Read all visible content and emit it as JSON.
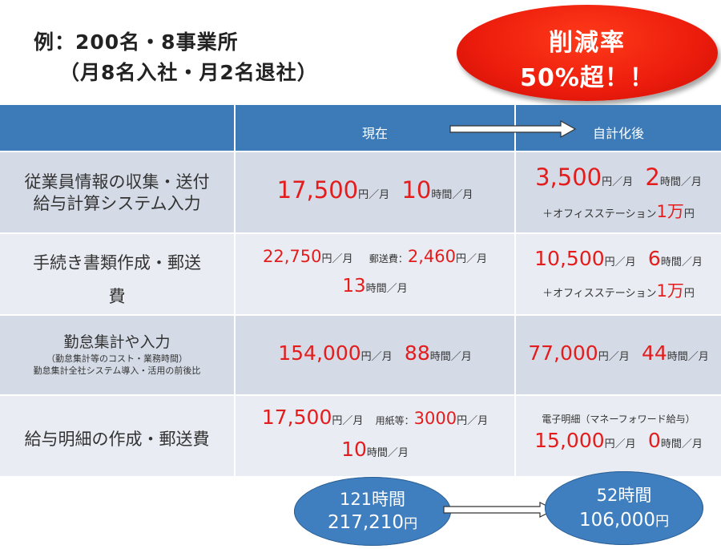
{
  "heading": {
    "line1": "例：200名・8事業所",
    "line2": "（月8名入社・月2名退社）"
  },
  "badge": {
    "line1": "削減率",
    "line2": "50%超！！"
  },
  "table": {
    "col_current": "現在",
    "col_after": "自計化後",
    "rows": [
      {
        "label_lines": [
          "従業員情報の収集・送付",
          "給与計算システム入力"
        ],
        "current": {
          "a_num": "17,500",
          "a_unit": "円／月",
          "b_num": "10",
          "b_unit": "時間／月"
        },
        "after": {
          "a_num": "3,500",
          "a_unit": "円／月",
          "b_num": "2",
          "b_unit": "時間／月",
          "extra_pre": "＋オフィスステーション",
          "extra_num": "1",
          "extra_big": "万",
          "extra_unit": "円"
        }
      },
      {
        "label_lines": [
          "手続き書類作成・郵送",
          "費"
        ],
        "current": {
          "a_num": "22,750",
          "a_unit": "円／月",
          "post_label": "郵送費：",
          "post_num": "2,460",
          "post_unit": "円／月",
          "b_num": "13",
          "b_unit": "時間／月"
        },
        "after": {
          "a_num": "10,500",
          "a_unit": "円／月",
          "b_num": "6",
          "b_unit": "時間／月",
          "extra_pre": "＋オフィスステーション",
          "extra_num": "1",
          "extra_big": "万",
          "extra_unit": "円"
        }
      },
      {
        "label_main": "勤怠集計や入力",
        "label_sub1": "（勤怠集計等のコスト・業務時間）",
        "label_sub2": "勤怠集計全社システム導入・活用の前後比",
        "current": {
          "a_num": "154,000",
          "a_unit": "円／月",
          "b_num": "88",
          "b_unit": "時間／月"
        },
        "after": {
          "a_num": "77,000",
          "a_unit": "円／月",
          "b_num": "44",
          "b_unit": "時間／月"
        }
      },
      {
        "label_lines": [
          "給与明細の作成・郵送費"
        ],
        "current": {
          "a_num": "17,500",
          "a_unit": "円／月",
          "post_label": "用紙等：",
          "post_num": "3000",
          "post_unit": "円／月",
          "b_num": "10",
          "b_unit": "時間／月"
        },
        "after": {
          "note": "電子明細（マネーフォワード給与）",
          "a_num": "15,000",
          "a_unit": "円／月",
          "b_num": "0",
          "b_unit": "時間／月"
        }
      }
    ]
  },
  "totals": {
    "current": {
      "hours": "121時間",
      "amount": "217,210",
      "yen": "円"
    },
    "after": {
      "hours": "52時間",
      "amount": "106,000",
      "yen": "円"
    }
  }
}
